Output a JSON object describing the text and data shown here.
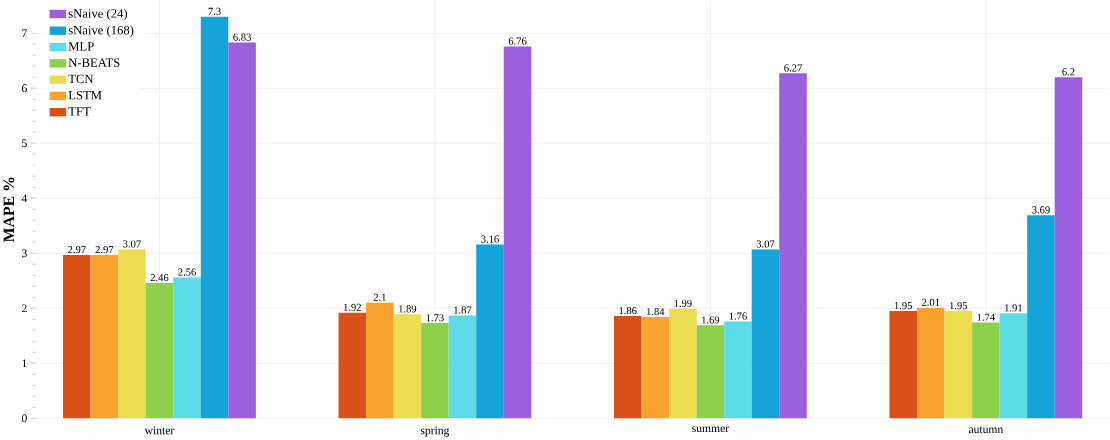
{
  "chart_data": {
    "type": "bar",
    "ylabel": "MAPE %",
    "categories": [
      "winter",
      "spring",
      "summer",
      "autumn"
    ],
    "series": [
      {
        "name": "TFT",
        "color": "#d95117",
        "values": [
          2.97,
          1.92,
          1.86,
          1.95
        ]
      },
      {
        "name": "LSTM",
        "color": "#f9a22d",
        "values": [
          2.97,
          2.1,
          1.84,
          2.01
        ]
      },
      {
        "name": "TCN",
        "color": "#ebdd4f",
        "values": [
          3.07,
          1.89,
          1.99,
          1.95
        ]
      },
      {
        "name": "N-BEATS",
        "color": "#8dd14a",
        "values": [
          2.46,
          1.73,
          1.69,
          1.74
        ]
      },
      {
        "name": "MLP",
        "color": "#5ddbe6",
        "values": [
          2.56,
          1.87,
          1.76,
          1.91
        ]
      },
      {
        "name": "sNaive (168)",
        "color": "#16a3d9",
        "values": [
          7.3,
          3.16,
          3.07,
          3.69
        ]
      },
      {
        "name": "sNaive (24)",
        "color": "#9b5fe0",
        "values": [
          6.83,
          6.76,
          6.27,
          6.2
        ]
      }
    ],
    "ylim": [
      0,
      7.6
    ],
    "yticks": [
      0,
      1,
      2,
      3,
      4,
      5,
      6,
      7
    ],
    "grid": true,
    "legend": "top left",
    "data_labels": true
  }
}
